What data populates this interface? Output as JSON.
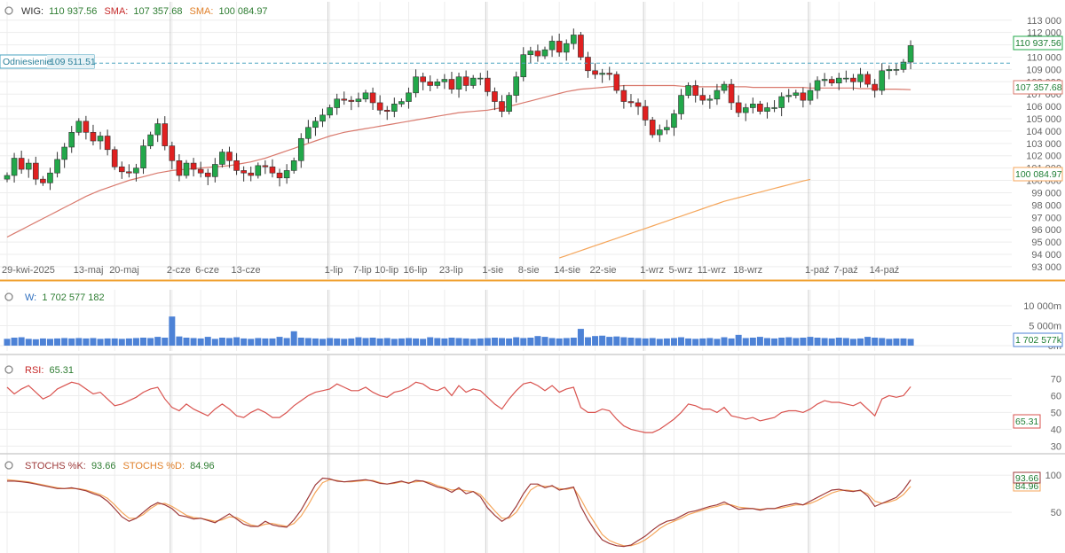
{
  "colors": {
    "up": "#22a84a",
    "down": "#e02020",
    "sma_short": "#d97a6e",
    "sma_long": "#f5a65b",
    "volume": "#4d82d6",
    "rsi": "#d9534f",
    "stoch_k": "#9e3a3a",
    "stoch_d": "#f5a65b",
    "ref": "#4aa3c0",
    "text_main": "#333333",
    "value_green": "#2e7d32",
    "value_red": "#c62828",
    "value_orange": "#e0802a",
    "value_blue": "#2f6fbf"
  },
  "legend": {
    "main": {
      "wig_label": "WIG:",
      "wig_value": "110 937.56",
      "sma1_label": "SMA:",
      "sma1_value": "107 357.68",
      "sma2_label": "SMA:",
      "sma2_value": "100 084.97"
    },
    "volume": {
      "label": "W:",
      "value": "1 702 577 182"
    },
    "rsi": {
      "label": "RSI:",
      "value": "65.31"
    },
    "stoch": {
      "k_label": "STOCHS %K:",
      "k_value": "93.66",
      "d_label": "STOCHS %D:",
      "d_value": "84.96"
    }
  },
  "reference": {
    "label": "Odniesienie",
    "value": "109 511.51"
  },
  "tags": {
    "last": "110 937.56",
    "sma1": "107 357.68",
    "sma2": "100 084.97",
    "volume": "1 702 577k",
    "rsi": "65.31",
    "stoch_k": "93.66",
    "stoch_d": "84.96"
  },
  "chart_data": [
    {
      "type": "candlestick",
      "title": "WIG",
      "ylim": [
        92200,
        113200
      ],
      "y_ticks": [
        {
          "v": 113000,
          "label": "113 000"
        },
        {
          "v": 112000,
          "label": "112 000"
        },
        {
          "v": 111000,
          "label": "111 000"
        },
        {
          "v": 110000,
          "label": "110 000"
        },
        {
          "v": 109000,
          "label": "109 000"
        },
        {
          "v": 108000,
          "label": "108 000"
        },
        {
          "v": 107000,
          "label": "107 000"
        },
        {
          "v": 106000,
          "label": "106 000"
        },
        {
          "v": 105000,
          "label": "105 000"
        },
        {
          "v": 104000,
          "label": "104 000"
        },
        {
          "v": 103000,
          "label": "103 000"
        },
        {
          "v": 102000,
          "label": "102 000"
        },
        {
          "v": 101000,
          "label": "101 000"
        },
        {
          "v": 100000,
          "label": "100 000"
        },
        {
          "v": 99000,
          "label": "99 000"
        },
        {
          "v": 98000,
          "label": "98 000"
        },
        {
          "v": 97000,
          "label": "97 000"
        },
        {
          "v": 96000,
          "label": "96 000"
        },
        {
          "v": 95000,
          "label": "95 000"
        },
        {
          "v": 94000,
          "label": "94 000"
        },
        {
          "v": 93000,
          "label": "93 000"
        }
      ],
      "x_ticks": [
        {
          "i": 0,
          "label": "29-kwi-2025"
        },
        {
          "i": 10,
          "label": "13-maj"
        },
        {
          "i": 15,
          "label": "20-maj"
        },
        {
          "i": 23,
          "label": "2-cze"
        },
        {
          "i": 27,
          "label": "6-cze"
        },
        {
          "i": 32,
          "label": "13-cze"
        },
        {
          "i": 45,
          "label": "1-lip"
        },
        {
          "i": 49,
          "label": "7-lip"
        },
        {
          "i": 52,
          "label": "10-lip"
        },
        {
          "i": 56,
          "label": "16-lip"
        },
        {
          "i": 61,
          "label": "23-lip"
        },
        {
          "i": 67,
          "label": "1-sie"
        },
        {
          "i": 72,
          "label": "8-sie"
        },
        {
          "i": 77,
          "label": "14-sie"
        },
        {
          "i": 82,
          "label": "22-sie"
        },
        {
          "i": 89,
          "label": "1-wrz"
        },
        {
          "i": 93,
          "label": "5-wrz"
        },
        {
          "i": 97,
          "label": "11-wrz"
        },
        {
          "i": 102,
          "label": "18-wrz"
        },
        {
          "i": 112,
          "label": "1-paź"
        },
        {
          "i": 116,
          "label": "7-paź"
        },
        {
          "i": 121,
          "label": "14-paź"
        }
      ],
      "month_separators": [
        0,
        23,
        45,
        67,
        89,
        112
      ],
      "reference_value": 109511.51,
      "close": [
        100400,
        101800,
        100900,
        101400,
        100100,
        99800,
        100600,
        101700,
        102700,
        103900,
        104800,
        103900,
        103200,
        103600,
        102500,
        101100,
        100700,
        100600,
        101000,
        102800,
        103700,
        104600,
        102800,
        101600,
        100400,
        101400,
        100900,
        100600,
        100300,
        101300,
        102300,
        101600,
        100800,
        100600,
        100400,
        101200,
        101100,
        100600,
        100200,
        100800,
        101600,
        103400,
        104300,
        104800,
        105300,
        105900,
        106600,
        106500,
        106400,
        106600,
        107100,
        106300,
        105700,
        105600,
        106200,
        106400,
        107100,
        108400,
        108000,
        107700,
        108000,
        108200,
        107400,
        108400,
        107700,
        108300,
        108300,
        107200,
        106400,
        105600,
        106900,
        108400,
        110200,
        110500,
        110100,
        110600,
        111300,
        110400,
        111100,
        111800,
        110000,
        108900,
        108600,
        108700,
        108600,
        107300,
        106400,
        106300,
        106000,
        104900,
        103700,
        104100,
        104300,
        105400,
        106900,
        107700,
        106900,
        106500,
        106600,
        107300,
        107800,
        106300,
        105500,
        105900,
        106200,
        105600,
        105900,
        105900,
        106800,
        106900,
        107100,
        106500,
        107300,
        108100,
        108200,
        107900,
        108300,
        108300,
        108000,
        108600,
        107800,
        107300,
        108900,
        109000,
        109000,
        109600,
        110937
      ]
    },
    {
      "type": "line",
      "title": "SMA",
      "series": [
        {
          "name": "SMA",
          "first_index": 0,
          "values": [
            95400,
            95700,
            96000,
            96300,
            96600,
            96900,
            97200,
            97500,
            97800,
            98100,
            98400,
            98700,
            98950,
            99200,
            99400,
            99600,
            99800,
            100000,
            100150,
            100300,
            100450,
            100600,
            100700,
            100800,
            100850,
            100900,
            100950,
            101000,
            101050,
            101100,
            101150,
            101200,
            101300,
            101400,
            101500,
            101650,
            101800,
            102000,
            102200,
            102400,
            102600,
            102800,
            103000,
            103200,
            103400,
            103600,
            103750,
            103900,
            104000,
            104100,
            104200,
            104300,
            104400,
            104500,
            104600,
            104700,
            104800,
            104900,
            105000,
            105100,
            105200,
            105300,
            105400,
            105500,
            105550,
            105600,
            105650,
            105700,
            105800,
            105900,
            106000,
            106150,
            106300,
            106450,
            106600,
            106750,
            106900,
            107050,
            107200,
            107300,
            107400,
            107450,
            107500,
            107550,
            107600,
            107650,
            107700,
            107700,
            107700,
            107700,
            107700,
            107700,
            107700,
            107700,
            107650,
            107600,
            107600,
            107600,
            107600,
            107600,
            107600,
            107600,
            107600,
            107600,
            107550,
            107550,
            107550,
            107550,
            107550,
            107550,
            107550,
            107550,
            107500,
            107500,
            107500,
            107500,
            107500,
            107500,
            107500,
            107450,
            107450,
            107450,
            107400,
            107400,
            107400,
            107380,
            107357.68
          ]
        }
      ]
    },
    {
      "type": "line",
      "title": "SMA",
      "series": [
        {
          "name": "SMA",
          "first_index": 77,
          "values": [
            93700,
            93900,
            94100,
            94300,
            94500,
            94700,
            94900,
            95100,
            95300,
            95500,
            95700,
            95900,
            96100,
            96300,
            96500,
            96700,
            96900,
            97100,
            97300,
            97500,
            97700,
            97900,
            98100,
            98300,
            98450,
            98600,
            98750,
            98900,
            99050,
            99200,
            99350,
            99500,
            99650,
            99800,
            99950,
            100084.97
          ]
        }
      ]
    },
    {
      "type": "bar",
      "title": "W",
      "ylim": [
        0,
        10000
      ],
      "y_ticks": [
        {
          "v": 10000,
          "label": "10 000m"
        },
        {
          "v": 5000,
          "label": "5 000m"
        },
        {
          "v": 0,
          "label": "0m"
        }
      ],
      "values": [
        1700,
        2000,
        2100,
        1700,
        1600,
        1800,
        1700,
        1800,
        1900,
        1800,
        1900,
        1800,
        1900,
        1700,
        1800,
        1800,
        1700,
        1800,
        1900,
        2000,
        1900,
        2200,
        2000,
        7300,
        2300,
        2000,
        1900,
        1800,
        2200,
        1700,
        2000,
        1900,
        2100,
        1800,
        1700,
        1900,
        1800,
        1800,
        2200,
        1900,
        3600,
        2000,
        1900,
        1800,
        1700,
        1900,
        1800,
        1700,
        1800,
        2100,
        1900,
        2000,
        1800,
        1900,
        1700,
        1800,
        1900,
        1800,
        1700,
        2100,
        1900,
        1800,
        2000,
        1900,
        1800,
        1700,
        1800,
        1900,
        2000,
        1900,
        1800,
        2100,
        1900,
        2000,
        2400,
        2200,
        1900,
        1800,
        1900,
        2000,
        4200,
        2100,
        2400,
        2500,
        2200,
        2300,
        2100,
        2000,
        1900,
        1800,
        1900,
        1700,
        1800,
        1900,
        2100,
        1800,
        1700,
        1800,
        1900,
        1700,
        2100,
        1800,
        2700,
        1900,
        2000,
        2200,
        1900,
        1800,
        2000,
        2100,
        1900,
        2000,
        2200,
        2000,
        1900,
        1800,
        2000,
        1900,
        1700,
        1800,
        2200,
        2000,
        1900,
        1700,
        1800,
        1800,
        1702.577
      ]
    },
    {
      "type": "line",
      "title": "RSI",
      "ylim": [
        27,
        75
      ],
      "y_ticks": [
        {
          "v": 70,
          "label": "70"
        },
        {
          "v": 60,
          "label": "60"
        },
        {
          "v": 50,
          "label": "50"
        },
        {
          "v": 40,
          "label": "40"
        },
        {
          "v": 30,
          "label": "30"
        }
      ],
      "series": [
        {
          "name": "RSI",
          "values": [
            65,
            61,
            64,
            66,
            62,
            58,
            60,
            64,
            66,
            68,
            67,
            64,
            61,
            62,
            58,
            54,
            55,
            57,
            59,
            62,
            64,
            65,
            58,
            53,
            51,
            55,
            52,
            50,
            48,
            52,
            55,
            52,
            48,
            47,
            50,
            52,
            50,
            47,
            47,
            50,
            54,
            57,
            60,
            62,
            63,
            64,
            67,
            65,
            63,
            63,
            65,
            62,
            60,
            59,
            62,
            63,
            65,
            68,
            67,
            64,
            63,
            65,
            60,
            66,
            62,
            64,
            63,
            59,
            55,
            52,
            58,
            63,
            67,
            68,
            66,
            63,
            66,
            62,
            64,
            65,
            53,
            50,
            50,
            52,
            51,
            46,
            42,
            40,
            39,
            38,
            38,
            40,
            43,
            46,
            50,
            55,
            54,
            52,
            52,
            50,
            53,
            48,
            47,
            46,
            47,
            45,
            46,
            47,
            50,
            51,
            51,
            50,
            52,
            55,
            57,
            56,
            56,
            55,
            54,
            56,
            52,
            48,
            58,
            60,
            59,
            60,
            65.31
          ]
        }
      ]
    },
    {
      "type": "line",
      "title": "STOCHS",
      "ylim": [
        0,
        105
      ],
      "y_ticks": [
        {
          "v": 100,
          "label": "100"
        },
        {
          "v": 50,
          "label": "50"
        }
      ],
      "series": [
        {
          "name": "STOCHS %K",
          "values": [
            92,
            92,
            91,
            90,
            88,
            86,
            84,
            82,
            82,
            83,
            81,
            79,
            75,
            72,
            65,
            55,
            44,
            38,
            42,
            50,
            58,
            63,
            60,
            55,
            46,
            44,
            41,
            42,
            39,
            36,
            42,
            48,
            41,
            34,
            31,
            31,
            38,
            33,
            31,
            30,
            40,
            53,
            70,
            87,
            96,
            95,
            92,
            91,
            92,
            93,
            94,
            92,
            89,
            88,
            90,
            92,
            89,
            93,
            92,
            88,
            84,
            82,
            77,
            83,
            75,
            78,
            71,
            56,
            46,
            38,
            44,
            58,
            75,
            88,
            88,
            83,
            86,
            80,
            82,
            84,
            58,
            40,
            25,
            13,
            8,
            5,
            4,
            6,
            12,
            18,
            26,
            33,
            38,
            40,
            45,
            50,
            52,
            55,
            58,
            60,
            64,
            59,
            54,
            55,
            55,
            53,
            55,
            55,
            58,
            60,
            62,
            60,
            65,
            70,
            75,
            80,
            81,
            79,
            78,
            80,
            72,
            58,
            62,
            66,
            70,
            80,
            93.66
          ]
        },
        {
          "name": "STOCHS %D",
          "values": [
            94,
            93,
            92,
            91,
            89,
            87,
            85,
            83,
            82,
            82,
            82,
            80,
            77,
            74,
            69,
            60,
            50,
            42,
            42,
            47,
            55,
            61,
            62,
            58,
            52,
            46,
            43,
            42,
            40,
            38,
            40,
            44,
            43,
            38,
            33,
            31,
            34,
            35,
            33,
            31,
            35,
            45,
            60,
            77,
            90,
            94,
            93,
            91,
            91,
            92,
            93,
            93,
            90,
            88,
            89,
            91,
            90,
            91,
            92,
            90,
            86,
            83,
            80,
            81,
            79,
            78,
            74,
            63,
            52,
            42,
            42,
            50,
            65,
            80,
            86,
            85,
            85,
            82,
            81,
            83,
            68,
            50,
            35,
            20,
            12,
            8,
            5,
            5,
            8,
            13,
            20,
            28,
            34,
            38,
            42,
            47,
            50,
            53,
            56,
            58,
            61,
            60,
            57,
            56,
            55,
            54,
            55,
            55,
            56,
            58,
            60,
            60,
            62,
            66,
            71,
            76,
            79,
            80,
            79,
            79,
            75,
            65,
            62,
            64,
            67,
            74,
            84.96
          ]
        }
      ]
    }
  ]
}
